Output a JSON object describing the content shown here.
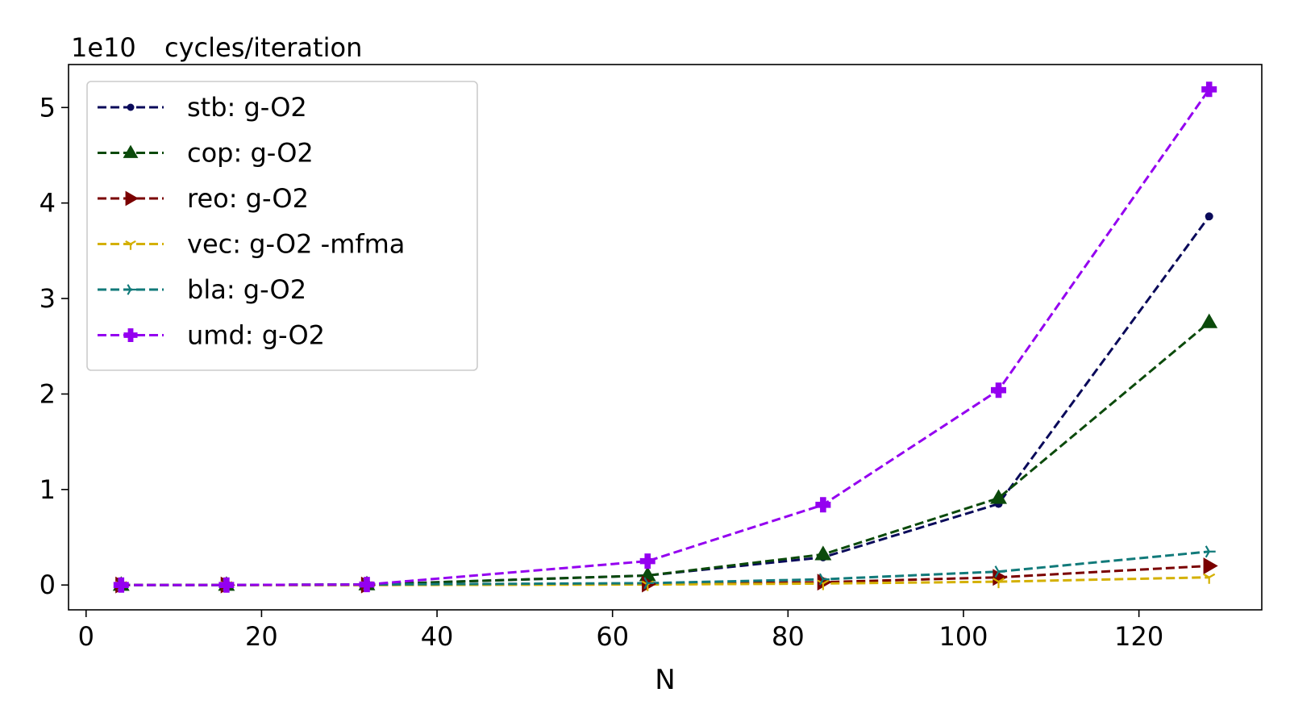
{
  "chart_data": {
    "type": "line",
    "title": "",
    "xlabel": "N",
    "ylabel": "cycles/iteration",
    "y_scale_label": "1e10",
    "xlim": [
      -2,
      134
    ],
    "ylim": [
      -0.26,
      5.45
    ],
    "x_ticks": [
      0,
      20,
      40,
      60,
      80,
      100,
      120
    ],
    "x_tick_labels": [
      "0",
      "20",
      "40",
      "60",
      "80",
      "100",
      "120"
    ],
    "y_ticks": [
      0,
      1,
      2,
      3,
      4,
      5
    ],
    "y_tick_labels": [
      "0",
      "1",
      "2",
      "3",
      "4",
      "5"
    ],
    "grid": false,
    "legend_position": "top-left",
    "x": [
      4,
      16,
      32,
      64,
      84,
      104,
      128
    ],
    "series": [
      {
        "name": "stb:  g-O2",
        "color": "#0a0a5a",
        "marker": "circle",
        "values": [
          0.0,
          0.0,
          0.005,
          0.1,
          0.29,
          0.85,
          3.86
        ]
      },
      {
        "name": "cop:  g-O2",
        "color": "#0b4a0b",
        "marker": "triangle-up",
        "values": [
          0.0,
          0.0,
          0.005,
          0.1,
          0.32,
          0.91,
          2.75
        ]
      },
      {
        "name": "reo:  g-O2",
        "color": "#7a0000",
        "marker": "triangle-right",
        "values": [
          0.0,
          0.0,
          0.0,
          0.01,
          0.03,
          0.08,
          0.2
        ]
      },
      {
        "name": "vec:  g-O2 -mfma",
        "color": "#d4b000",
        "marker": "tri-down",
        "values": [
          0.0,
          0.0,
          0.0,
          0.005,
          0.015,
          0.035,
          0.08
        ]
      },
      {
        "name": "bla:  g-O2",
        "color": "#117a7a",
        "marker": "tri-right",
        "values": [
          0.0,
          0.0,
          0.005,
          0.02,
          0.06,
          0.14,
          0.35
        ]
      },
      {
        "name": "umd:  g-O2",
        "color": "#9400f0",
        "marker": "plus-filled",
        "values": [
          0.0,
          0.0,
          0.005,
          0.25,
          0.84,
          2.04,
          5.19
        ]
      }
    ]
  }
}
